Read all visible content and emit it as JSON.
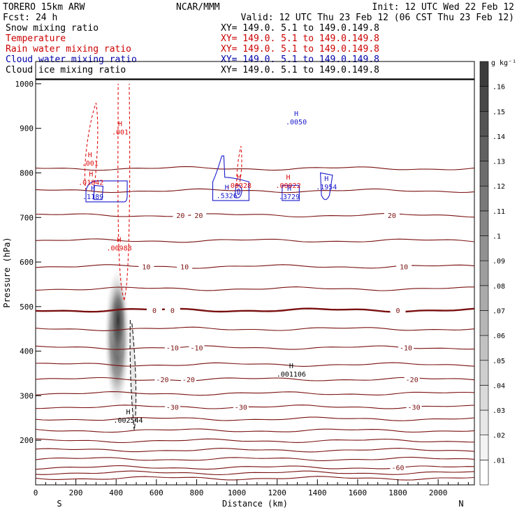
{
  "header": {
    "model": "TORERO  15km ARW",
    "org": "NCAR/MMM",
    "init": "Init: 12 UTC Wed 22 Feb 12",
    "fcst": "Fcst:    24 h",
    "valid": "Valid: 12 UTC Thu 23 Feb 12 (06 CST Thu 23 Feb 12)",
    "fields": [
      {
        "name": "Snow mixing ratio",
        "xy": "XY= 149.0.  5.1 to 149.0.149.8",
        "color": "#000000"
      },
      {
        "name": "Temperature",
        "xy": "XY= 149.0.  5.1 to 149.0.149.8",
        "color": "#cc0000"
      },
      {
        "name": "Rain water mixing ratio",
        "xy": "XY= 149.0.  5.1 to 149.0.149.8",
        "color": "#cc0000"
      },
      {
        "name": "Cloud water mixing ratio",
        "xy": "XY= 149.0.  5.1 to 149.0.149.8",
        "color": "#0000aa"
      },
      {
        "name": "Cloud ice mixing ratio",
        "xy": "XY= 149.0.  5.1 to 149.0.149.8",
        "color": "#000000"
      }
    ]
  },
  "chart_data": {
    "type": "cross-section",
    "xlabel": "Distance (km)",
    "ylabel": "Pressure (hPa)",
    "xlim": [
      0,
      2180
    ],
    "ylim": [
      1050,
      100
    ],
    "x_ticks": [
      0,
      200,
      400,
      600,
      800,
      1000,
      1200,
      1400,
      1600,
      1800,
      2000
    ],
    "y_ticks": [
      200,
      300,
      400,
      500,
      600,
      700,
      800,
      900,
      1000
    ],
    "x_end_labels": {
      "left": "S",
      "right": "N"
    },
    "temperature_contours": [
      {
        "value": -70,
        "p": 115,
        "label": ""
      },
      {
        "value": -65,
        "p": 127,
        "label": ""
      },
      {
        "value": -60,
        "p": 139,
        "label": "-60"
      },
      {
        "value": -55,
        "p": 158,
        "label": ""
      },
      {
        "value": -50,
        "p": 178,
        "label": ""
      },
      {
        "value": -45,
        "p": 199,
        "label": ""
      },
      {
        "value": -40,
        "p": 222,
        "label": ""
      },
      {
        "value": -35,
        "p": 248,
        "label": ""
      },
      {
        "value": -30,
        "p": 275,
        "label": "-30"
      },
      {
        "value": -25,
        "p": 305,
        "label": ""
      },
      {
        "value": -20,
        "p": 337,
        "label": "-20"
      },
      {
        "value": -15,
        "p": 370,
        "label": ""
      },
      {
        "value": -10,
        "p": 408,
        "label": "-10"
      },
      {
        "value": -5,
        "p": 450,
        "label": ""
      },
      {
        "value": 0,
        "p": 492,
        "label": "0"
      },
      {
        "value": 5,
        "p": 540,
        "label": ""
      },
      {
        "value": 10,
        "p": 590,
        "label": "10"
      },
      {
        "value": 15,
        "p": 648,
        "label": ""
      },
      {
        "value": 20,
        "p": 705,
        "label": "20"
      },
      {
        "value": 25,
        "p": 760,
        "label": ""
      },
      {
        "value": 30,
        "p": 810,
        "label": ""
      }
    ],
    "contour_label_text": {
      "m60": "-60",
      "m30": "-30",
      "m20": "-20",
      "m10": "-10",
      "zero": "0",
      "p10": "10",
      "p20": "20"
    },
    "maxima": [
      {
        "field": "Cloud ice mixing ratio",
        "x_km": 460,
        "p": 258,
        "value": ".002544"
      },
      {
        "field": "Cloud ice mixing ratio",
        "x_km": 1270,
        "p": 362,
        "value": ".001106"
      },
      {
        "field": "Rain water mixing ratio",
        "x_km": 415,
        "p": 645,
        "value": ".00988"
      },
      {
        "field": "Cloud water mixing ratio",
        "x_km": 285,
        "p": 760,
        "value": ".1189"
      },
      {
        "field": "Rain water mixing ratio",
        "x_km": 275,
        "p": 792,
        "value": ".01842"
      },
      {
        "field": "Rain water mixing ratio",
        "x_km": 270,
        "p": 835,
        "value": ".001"
      },
      {
        "field": "Rain water mixing ratio",
        "x_km": 420,
        "p": 905,
        "value": ".001"
      },
      {
        "field": "Cloud water mixing ratio",
        "x_km": 950,
        "p": 762,
        "value": ".5326"
      },
      {
        "field": "Rain water mixing ratio",
        "x_km": 1010,
        "p": 785,
        "value": ".00328"
      },
      {
        "field": "Cloud water mixing ratio",
        "x_km": 1260,
        "p": 760,
        "value": ".3729"
      },
      {
        "field": "Rain water mixing ratio",
        "x_km": 1255,
        "p": 785,
        "value": ".00022"
      },
      {
        "field": "Cloud water mixing ratio",
        "x_km": 1445,
        "p": 782,
        "value": ".1954"
      },
      {
        "field": "Cloud water mixing ratio",
        "x_km": 1295,
        "p": 928,
        "value": ".0050"
      }
    ],
    "max_marker": "H",
    "colorbar": {
      "unit": "g kg⁻¹",
      "levels": [
        ".01",
        ".02",
        ".03",
        ".04",
        ".05",
        ".06",
        ".07",
        ".08",
        ".09",
        ".1",
        ".11",
        ".12",
        ".13",
        ".14",
        ".15",
        ".16"
      ]
    }
  },
  "colors": {
    "temperature": "#7a1010",
    "rain": "#dd1111",
    "cloud_water": "#1a1acc",
    "cloud_ice": "#000000"
  }
}
